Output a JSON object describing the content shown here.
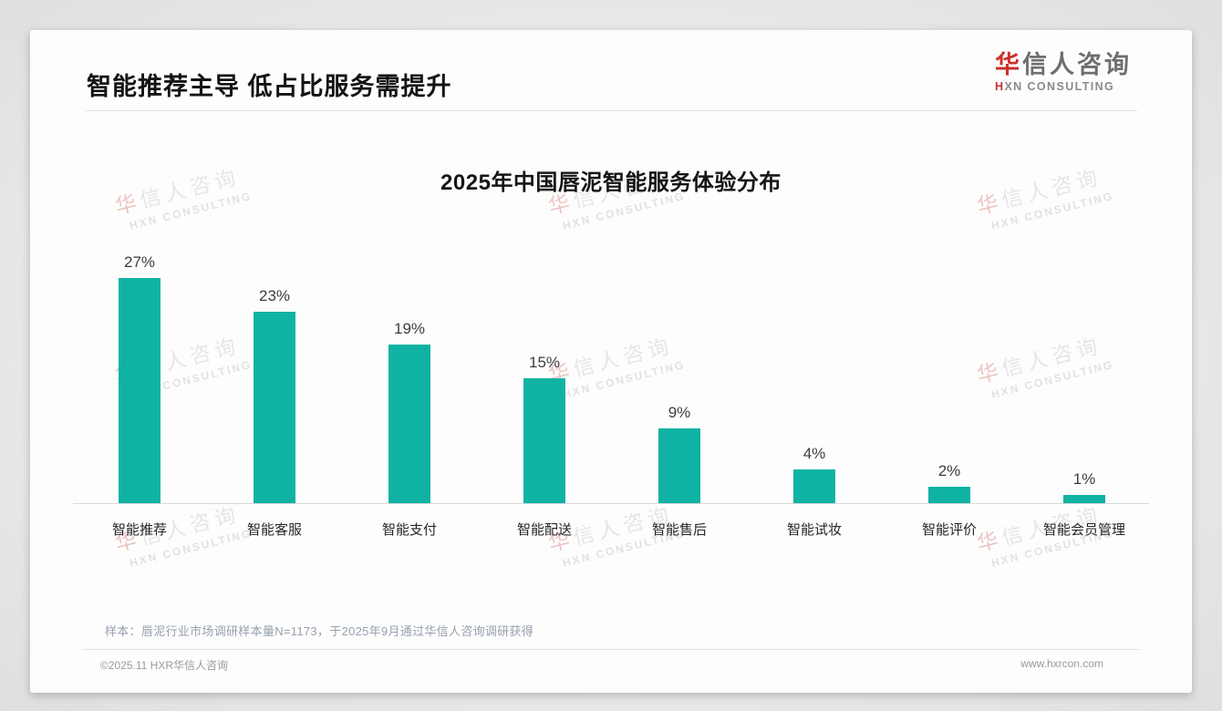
{
  "header": {
    "title": "智能推荐主导 低占比服务需提升",
    "logo": {
      "cn_accent": "华",
      "cn_rest": "信人咨询",
      "en_accent": "H",
      "en_rest": "XN CONSULTING",
      "accent_color": "#C9302C"
    }
  },
  "chart_data": {
    "type": "bar",
    "title": "2025年中国唇泥智能服务体验分布",
    "categories": [
      "智能推荐",
      "智能客服",
      "智能支付",
      "智能配送",
      "智能售后",
      "智能试妆",
      "智能评价",
      "智能会员管理"
    ],
    "values": [
      27,
      23,
      19,
      15,
      9,
      4,
      2,
      1
    ],
    "unit": "%",
    "bar_color": "#10B3A3",
    "value_label_color": "#3D3D3D",
    "xlabel": "",
    "ylabel": "",
    "ylim": [
      0,
      30
    ],
    "grid": false,
    "legend": null,
    "value_labels": true
  },
  "footnote": "样本：唇泥行业市场调研样本量N=1173，于2025年9月通过华信人咨询调研获得",
  "footer": {
    "left": "©2025.11 HXR华信人咨询",
    "right": "www.hxrcon.com"
  },
  "watermark": {
    "line1_accent": "华",
    "line1_rest": "信人咨询",
    "line2": "HXN CONSULTING"
  }
}
